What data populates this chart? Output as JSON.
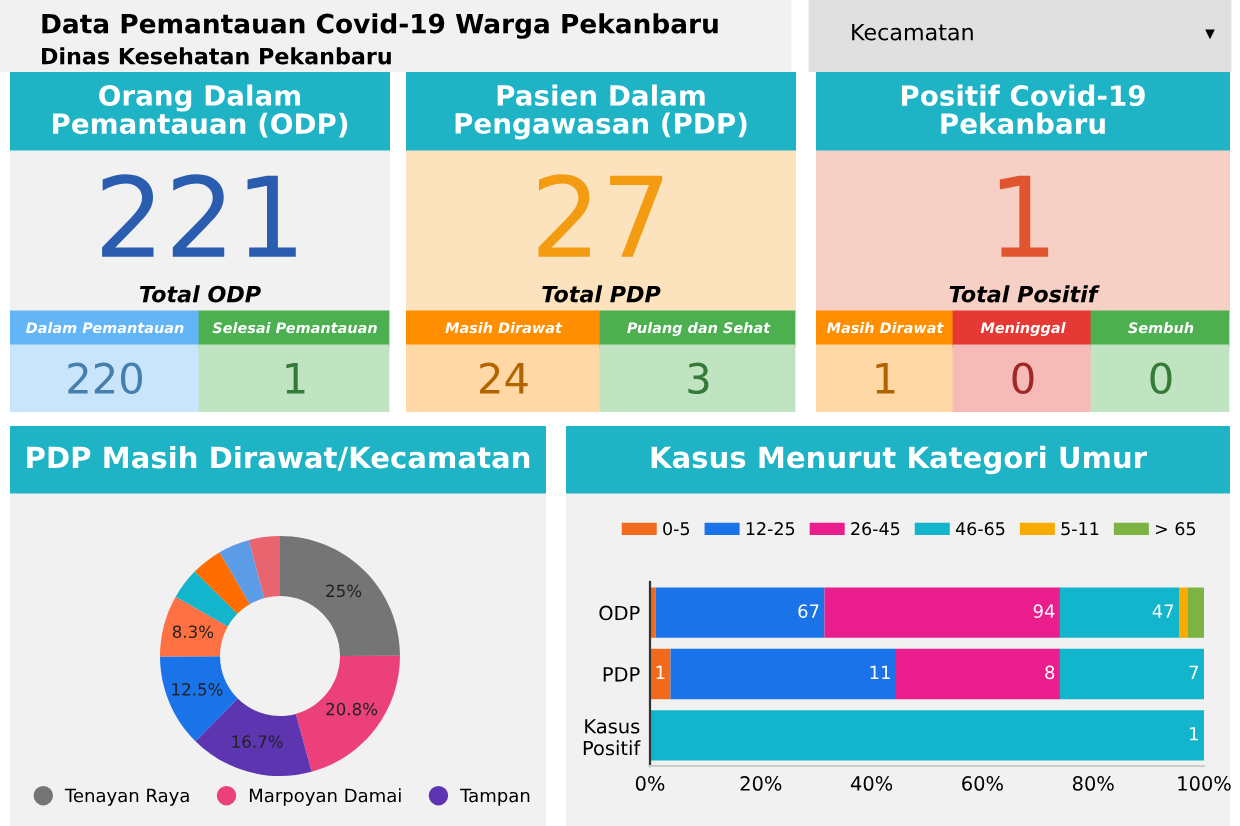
{
  "chart_data": [
    {
      "type": "other",
      "title": "Data Pemantauan Covid-19 Warga Pekanbaru",
      "subtitle": "Dinas Kesehatan Pekanbaru",
      "annotations": [
        "Kecamatan",
        "▾"
      ]
    },
    {
      "type": "other",
      "title": "Orang Dalam Pemantauan (ODP)",
      "categories": [
        "Total ODP",
        "Dalam Pemantauan",
        "Selesai Pemantauan"
      ],
      "values": [
        221,
        220,
        1
      ],
      "data_labels": true
    },
    {
      "type": "other",
      "title": "Pasien Dalam Pengawasan (PDP)",
      "categories": [
        "Total PDP",
        "Masih Dirawat",
        "Pulang dan Sehat"
      ],
      "values": [
        27,
        24,
        3
      ],
      "data_labels": true
    },
    {
      "type": "other",
      "title": "Positif Covid-19 Pekanbaru",
      "categories": [
        "Total Positif",
        "Masih Dirawat",
        "Meninggal",
        "Sembuh"
      ],
      "values": [
        1,
        1,
        0,
        0
      ],
      "data_labels": true
    },
    {
      "type": "donut",
      "title": "PDP Masih Dirawat/Kecamatan",
      "categories": [
        "Tenayan Raya",
        "Marpoyan Damai",
        "Tampan",
        null,
        null,
        null,
        null,
        null,
        null
      ],
      "values": [
        25,
        20.8,
        16.7,
        12.5,
        8.3,
        4.2,
        4.2,
        4.2,
        4.2
      ],
      "colors": [
        "#757575",
        "#ec407a",
        "#5e35b1",
        "#1a73e8",
        "#ff7043",
        "#12b5cb",
        "#ff6d00",
        "#5c9ce6",
        "#e8656f"
      ],
      "value_labels": [
        "25%",
        "20.8%",
        "16.7%",
        "12.5%",
        "8.3%",
        null,
        null,
        null,
        null
      ],
      "legend": "bottom"
    },
    {
      "type": "bar",
      "title": "Kasus Menurut Kategori Umur",
      "orientation": "horizontal",
      "stacked": true,
      "categories": [
        "ODP",
        "PDP",
        "Kasus Positif"
      ],
      "legend": "top",
      "xlim": [
        0,
        100
      ],
      "xticks": [
        {
          "value": 0,
          "label": "0%"
        },
        {
          "value": 20,
          "label": "20%"
        },
        {
          "value": 40,
          "label": "40%"
        },
        {
          "value": 60,
          "label": "60%"
        },
        {
          "value": 80,
          "label": "80%"
        },
        {
          "value": 100,
          "label": "100%"
        }
      ],
      "series": [
        {
          "name": "0-5",
          "color": "#f26b1d",
          "values": [
            1.0,
            3.7,
            0
          ]
        },
        {
          "name": "12-25",
          "color": "#1a73e8",
          "values": [
            30.5,
            40.7,
            0
          ]
        },
        {
          "name": "26-45",
          "color": "#e91e8c",
          "values": [
            42.5,
            29.6,
            0
          ]
        },
        {
          "name": "46-65",
          "color": "#12b5cb",
          "values": [
            21.5,
            26.0,
            100
          ]
        },
        {
          "name": "5-11",
          "color": "#f9ab00",
          "values": [
            1.5,
            0,
            0
          ]
        },
        {
          "name": "> 65",
          "color": "#7cb342",
          "values": [
            3.0,
            0,
            0
          ]
        }
      ],
      "annotations": [
        {
          "text": "1",
          "x": 3.7,
          "y": "PDP"
        },
        {
          "text": "67",
          "x": 31.5,
          "y": "ODP"
        },
        {
          "text": "11",
          "x": 44.4,
          "y": "PDP"
        },
        {
          "text": "94",
          "x": 74,
          "y": "ODP"
        },
        {
          "text": "8",
          "x": 74,
          "y": "PDP"
        },
        {
          "text": "47",
          "x": 95.5,
          "y": "ODP"
        },
        {
          "text": "7",
          "x": 100,
          "y": "PDP"
        },
        {
          "text": "1",
          "x": 100,
          "y": "Kasus Positif"
        }
      ]
    }
  ]
}
